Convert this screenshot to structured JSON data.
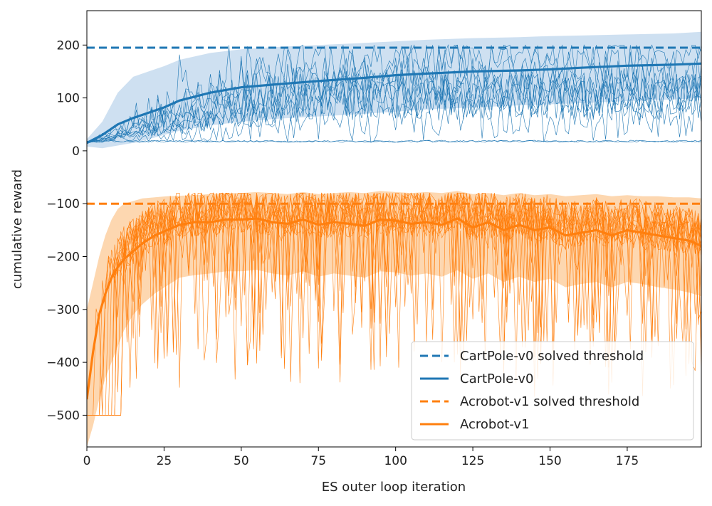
{
  "chart_data": {
    "type": "line",
    "xlabel": "ES outer loop iteration",
    "ylabel": "cumulative reward",
    "xlim": [
      0,
      199
    ],
    "ylim": [
      -560,
      265
    ],
    "xticks": [
      0,
      25,
      50,
      75,
      100,
      125,
      150,
      175
    ],
    "yticks": [
      200,
      100,
      0,
      -100,
      -200,
      -300,
      -400,
      -500
    ],
    "grid": false,
    "legend_position": "lower-right",
    "colors": {
      "cartpole": "#1f77b4",
      "acrobot": "#ff7f0e",
      "cartpole_band": "#c6dbef",
      "acrobot_band": "#fdd0a2"
    },
    "series": [
      {
        "name": "CartPole-v0 solved threshold",
        "style": "dashed",
        "color": "#1f77b4",
        "x": [
          0,
          199
        ],
        "values": [
          195,
          195
        ]
      },
      {
        "name": "CartPole-v0",
        "style": "solid",
        "color": "#1f77b4",
        "x": [
          0,
          5,
          10,
          15,
          20,
          25,
          30,
          40,
          50,
          60,
          75,
          90,
          100,
          110,
          125,
          140,
          150,
          160,
          175,
          190,
          199
        ],
        "values": [
          15,
          30,
          50,
          62,
          72,
          82,
          95,
          110,
          120,
          125,
          132,
          138,
          143,
          146,
          150,
          152,
          154,
          157,
          161,
          163,
          165
        ],
        "band_upper": [
          22,
          55,
          110,
          140,
          150,
          160,
          172,
          185,
          192,
          196,
          200,
          204,
          207,
          210,
          213,
          215,
          217,
          218,
          220,
          222,
          225
        ],
        "band_lower": [
          8,
          5,
          10,
          15,
          22,
          30,
          38,
          48,
          55,
          60,
          65,
          70,
          74,
          78,
          82,
          86,
          88,
          90,
          94,
          97,
          100
        ]
      },
      {
        "name": "Acrobot-v1 solved threshold",
        "style": "dashed",
        "color": "#ff7f0e",
        "x": [
          0,
          199
        ],
        "values": [
          -100,
          -100
        ]
      },
      {
        "name": "Acrobot-v1",
        "style": "solid",
        "color": "#ff7f0e",
        "x": [
          0,
          2,
          4,
          6,
          8,
          10,
          12,
          15,
          18,
          22,
          26,
          30,
          35,
          40,
          45,
          50,
          55,
          60,
          65,
          70,
          75,
          80,
          85,
          90,
          95,
          100,
          105,
          110,
          115,
          120,
          125,
          130,
          135,
          140,
          145,
          150,
          155,
          160,
          165,
          170,
          175,
          180,
          185,
          190,
          195,
          199
        ],
        "values": [
          -470,
          -380,
          -310,
          -270,
          -240,
          -220,
          -205,
          -190,
          -175,
          -160,
          -150,
          -140,
          -135,
          -135,
          -130,
          -130,
          -128,
          -135,
          -138,
          -130,
          -140,
          -135,
          -138,
          -142,
          -130,
          -132,
          -138,
          -135,
          -140,
          -128,
          -145,
          -135,
          -150,
          -140,
          -150,
          -145,
          -160,
          -155,
          -150,
          -160,
          -150,
          -155,
          -160,
          -165,
          -170,
          -180
        ],
        "band_upper": [
          -300,
          -250,
          -200,
          -160,
          -130,
          -110,
          -100,
          -95,
          -90,
          -88,
          -86,
          -85,
          -84,
          -82,
          -80,
          -80,
          -78,
          -80,
          -82,
          -78,
          -82,
          -80,
          -78,
          -80,
          -76,
          -78,
          -80,
          -78,
          -80,
          -76,
          -82,
          -80,
          -84,
          -80,
          -84,
          -82,
          -86,
          -84,
          -82,
          -86,
          -84,
          -86,
          -86,
          -88,
          -88,
          -90
        ],
        "band_lower": [
          -560,
          -520,
          -470,
          -430,
          -400,
          -370,
          -340,
          -310,
          -290,
          -270,
          -255,
          -240,
          -235,
          -232,
          -228,
          -228,
          -225,
          -232,
          -236,
          -228,
          -238,
          -232,
          -236,
          -240,
          -228,
          -230,
          -236,
          -232,
          -238,
          -226,
          -242,
          -232,
          -248,
          -238,
          -248,
          -242,
          -258,
          -252,
          -248,
          -258,
          -248,
          -252,
          -258,
          -262,
          -268,
          -275
        ]
      }
    ]
  }
}
